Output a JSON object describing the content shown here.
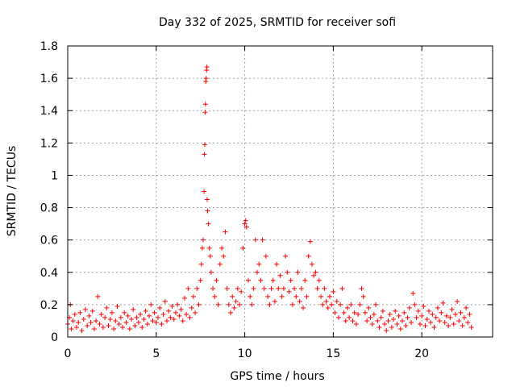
{
  "chart_data": {
    "type": "scatter",
    "title": "Day 332 of 2025, SRMTID for receiver sofi",
    "xlabel": "GPS time / hours",
    "ylabel": "SRMTID / TECUs",
    "xlim": [
      0,
      24
    ],
    "ylim": [
      0,
      1.8
    ],
    "xticks": [
      0,
      5,
      10,
      15,
      20
    ],
    "xtick_labels": [
      "0",
      "5",
      "10",
      "15",
      "20"
    ],
    "yticks": [
      0,
      0.2,
      0.4,
      0.6,
      0.8,
      1,
      1.2,
      1.4,
      1.6,
      1.8
    ],
    "ytick_labels": [
      "0",
      "0.2",
      "0.4",
      "0.6",
      "0.8",
      "1",
      "1.2",
      "1.4",
      "1.6",
      "1.8"
    ],
    "grid": true,
    "marker": "+",
    "series": [
      {
        "name": "SRMTID",
        "color": "#ff0000",
        "points": [
          [
            0.0,
            0.08
          ],
          [
            0.1,
            0.12
          ],
          [
            0.15,
            0.2
          ],
          [
            0.2,
            0.05
          ],
          [
            0.3,
            0.1
          ],
          [
            0.4,
            0.14
          ],
          [
            0.5,
            0.06
          ],
          [
            0.6,
            0.09
          ],
          [
            0.7,
            0.15
          ],
          [
            0.8,
            0.04
          ],
          [
            0.9,
            0.11
          ],
          [
            1.0,
            0.17
          ],
          [
            1.1,
            0.07
          ],
          [
            1.2,
            0.13
          ],
          [
            1.3,
            0.09
          ],
          [
            1.4,
            0.16
          ],
          [
            1.5,
            0.05
          ],
          [
            1.6,
            0.1
          ],
          [
            1.7,
            0.25
          ],
          [
            1.8,
            0.08
          ],
          [
            1.9,
            0.14
          ],
          [
            2.0,
            0.06
          ],
          [
            2.1,
            0.12
          ],
          [
            2.2,
            0.18
          ],
          [
            2.3,
            0.07
          ],
          [
            2.4,
            0.11
          ],
          [
            2.5,
            0.15
          ],
          [
            2.6,
            0.05
          ],
          [
            2.7,
            0.1
          ],
          [
            2.8,
            0.19
          ],
          [
            2.9,
            0.08
          ],
          [
            3.0,
            0.12
          ],
          [
            3.1,
            0.06
          ],
          [
            3.2,
            0.15
          ],
          [
            3.3,
            0.09
          ],
          [
            3.4,
            0.13
          ],
          [
            3.5,
            0.05
          ],
          [
            3.6,
            0.11
          ],
          [
            3.7,
            0.17
          ],
          [
            3.8,
            0.07
          ],
          [
            3.9,
            0.12
          ],
          [
            4.0,
            0.09
          ],
          [
            4.1,
            0.14
          ],
          [
            4.2,
            0.06
          ],
          [
            4.3,
            0.11
          ],
          [
            4.4,
            0.16
          ],
          [
            4.5,
            0.08
          ],
          [
            4.6,
            0.13
          ],
          [
            4.7,
            0.2
          ],
          [
            4.8,
            0.1
          ],
          [
            4.9,
            0.15
          ],
          [
            5.0,
            0.09
          ],
          [
            5.1,
            0.12
          ],
          [
            5.2,
            0.18
          ],
          [
            5.3,
            0.08
          ],
          [
            5.4,
            0.14
          ],
          [
            5.5,
            0.22
          ],
          [
            5.6,
            0.1
          ],
          [
            5.7,
            0.16
          ],
          [
            5.8,
            0.12
          ],
          [
            5.9,
            0.19
          ],
          [
            6.0,
            0.11
          ],
          [
            6.1,
            0.15
          ],
          [
            6.2,
            0.2
          ],
          [
            6.3,
            0.13
          ],
          [
            6.4,
            0.17
          ],
          [
            6.5,
            0.1
          ],
          [
            6.6,
            0.24
          ],
          [
            6.7,
            0.14
          ],
          [
            6.8,
            0.3
          ],
          [
            6.9,
            0.12
          ],
          [
            7.0,
            0.18
          ],
          [
            7.1,
            0.25
          ],
          [
            7.2,
            0.15
          ],
          [
            7.3,
            0.3
          ],
          [
            7.4,
            0.2
          ],
          [
            7.5,
            0.35
          ],
          [
            7.55,
            0.45
          ],
          [
            7.6,
            0.55
          ],
          [
            7.65,
            0.6
          ],
          [
            7.7,
            0.9
          ],
          [
            7.72,
            1.13
          ],
          [
            7.74,
            1.19
          ],
          [
            7.76,
            1.39
          ],
          [
            7.78,
            1.44
          ],
          [
            7.8,
            1.58
          ],
          [
            7.82,
            1.6
          ],
          [
            7.84,
            1.65
          ],
          [
            7.86,
            1.67
          ],
          [
            7.88,
            0.85
          ],
          [
            7.9,
            0.78
          ],
          [
            7.95,
            0.7
          ],
          [
            8.0,
            0.55
          ],
          [
            8.05,
            0.5
          ],
          [
            8.1,
            0.4
          ],
          [
            8.2,
            0.3
          ],
          [
            8.3,
            0.25
          ],
          [
            8.4,
            0.35
          ],
          [
            8.5,
            0.2
          ],
          [
            8.6,
            0.45
          ],
          [
            8.7,
            0.55
          ],
          [
            8.8,
            0.5
          ],
          [
            8.9,
            0.65
          ],
          [
            9.0,
            0.3
          ],
          [
            9.1,
            0.2
          ],
          [
            9.2,
            0.15
          ],
          [
            9.3,
            0.25
          ],
          [
            9.4,
            0.18
          ],
          [
            9.5,
            0.22
          ],
          [
            9.6,
            0.3
          ],
          [
            9.7,
            0.2
          ],
          [
            9.8,
            0.28
          ],
          [
            9.9,
            0.55
          ],
          [
            10.0,
            0.7
          ],
          [
            10.05,
            0.72
          ],
          [
            10.1,
            0.68
          ],
          [
            10.2,
            0.35
          ],
          [
            10.3,
            0.25
          ],
          [
            10.4,
            0.2
          ],
          [
            10.5,
            0.3
          ],
          [
            10.6,
            0.6
          ],
          [
            10.7,
            0.4
          ],
          [
            10.8,
            0.45
          ],
          [
            10.9,
            0.35
          ],
          [
            11.0,
            0.6
          ],
          [
            11.1,
            0.3
          ],
          [
            11.2,
            0.5
          ],
          [
            11.3,
            0.25
          ],
          [
            11.4,
            0.2
          ],
          [
            11.5,
            0.3
          ],
          [
            11.6,
            0.35
          ],
          [
            11.7,
            0.22
          ],
          [
            11.8,
            0.45
          ],
          [
            11.9,
            0.3
          ],
          [
            12.0,
            0.38
          ],
          [
            12.1,
            0.25
          ],
          [
            12.2,
            0.3
          ],
          [
            12.3,
            0.5
          ],
          [
            12.4,
            0.4
          ],
          [
            12.5,
            0.28
          ],
          [
            12.6,
            0.35
          ],
          [
            12.7,
            0.2
          ],
          [
            12.8,
            0.3
          ],
          [
            12.9,
            0.25
          ],
          [
            13.0,
            0.4
          ],
          [
            13.1,
            0.22
          ],
          [
            13.2,
            0.3
          ],
          [
            13.3,
            0.18
          ],
          [
            13.4,
            0.35
          ],
          [
            13.5,
            0.25
          ],
          [
            13.6,
            0.5
          ],
          [
            13.7,
            0.59
          ],
          [
            13.8,
            0.45
          ],
          [
            13.9,
            0.38
          ],
          [
            14.0,
            0.4
          ],
          [
            14.1,
            0.3
          ],
          [
            14.2,
            0.35
          ],
          [
            14.3,
            0.25
          ],
          [
            14.4,
            0.2
          ],
          [
            14.5,
            0.3
          ],
          [
            14.6,
            0.22
          ],
          [
            14.7,
            0.18
          ],
          [
            14.8,
            0.25
          ],
          [
            14.9,
            0.2
          ],
          [
            15.0,
            0.28
          ],
          [
            15.1,
            0.15
          ],
          [
            15.2,
            0.22
          ],
          [
            15.3,
            0.12
          ],
          [
            15.4,
            0.2
          ],
          [
            15.5,
            0.3
          ],
          [
            15.6,
            0.15
          ],
          [
            15.7,
            0.1
          ],
          [
            15.8,
            0.18
          ],
          [
            15.9,
            0.12
          ],
          [
            16.0,
            0.2
          ],
          [
            16.1,
            0.1
          ],
          [
            16.2,
            0.15
          ],
          [
            16.3,
            0.08
          ],
          [
            16.4,
            0.14
          ],
          [
            16.5,
            0.2
          ],
          [
            16.6,
            0.3
          ],
          [
            16.7,
            0.25
          ],
          [
            16.8,
            0.15
          ],
          [
            16.9,
            0.1
          ],
          [
            17.0,
            0.18
          ],
          [
            17.1,
            0.12
          ],
          [
            17.2,
            0.08
          ],
          [
            17.3,
            0.14
          ],
          [
            17.4,
            0.2
          ],
          [
            17.5,
            0.1
          ],
          [
            17.6,
            0.06
          ],
          [
            17.7,
            0.12
          ],
          [
            17.8,
            0.16
          ],
          [
            17.9,
            0.08
          ],
          [
            18.0,
            0.04
          ],
          [
            18.1,
            0.1
          ],
          [
            18.2,
            0.14
          ],
          [
            18.3,
            0.06
          ],
          [
            18.4,
            0.11
          ],
          [
            18.5,
            0.16
          ],
          [
            18.6,
            0.08
          ],
          [
            18.7,
            0.13
          ],
          [
            18.8,
            0.05
          ],
          [
            18.9,
            0.1
          ],
          [
            19.0,
            0.15
          ],
          [
            19.1,
            0.07
          ],
          [
            19.2,
            0.12
          ],
          [
            19.3,
            0.18
          ],
          [
            19.4,
            0.09
          ],
          [
            19.5,
            0.27
          ],
          [
            19.6,
            0.2
          ],
          [
            19.7,
            0.12
          ],
          [
            19.8,
            0.16
          ],
          [
            19.9,
            0.08
          ],
          [
            20.0,
            0.13
          ],
          [
            20.1,
            0.19
          ],
          [
            20.2,
            0.07
          ],
          [
            20.3,
            0.11
          ],
          [
            20.4,
            0.16
          ],
          [
            20.5,
            0.09
          ],
          [
            20.6,
            0.14
          ],
          [
            20.7,
            0.06
          ],
          [
            20.8,
            0.12
          ],
          [
            20.9,
            0.18
          ],
          [
            21.0,
            0.1
          ],
          [
            21.1,
            0.15
          ],
          [
            21.2,
            0.21
          ],
          [
            21.3,
            0.09
          ],
          [
            21.4,
            0.13
          ],
          [
            21.5,
            0.07
          ],
          [
            21.6,
            0.12
          ],
          [
            21.7,
            0.17
          ],
          [
            21.8,
            0.08
          ],
          [
            21.9,
            0.14
          ],
          [
            22.0,
            0.22
          ],
          [
            22.1,
            0.1
          ],
          [
            22.2,
            0.15
          ],
          [
            22.3,
            0.07
          ],
          [
            22.4,
            0.12
          ],
          [
            22.5,
            0.18
          ],
          [
            22.6,
            0.09
          ],
          [
            22.7,
            0.14
          ],
          [
            22.8,
            0.06
          ]
        ]
      }
    ]
  }
}
